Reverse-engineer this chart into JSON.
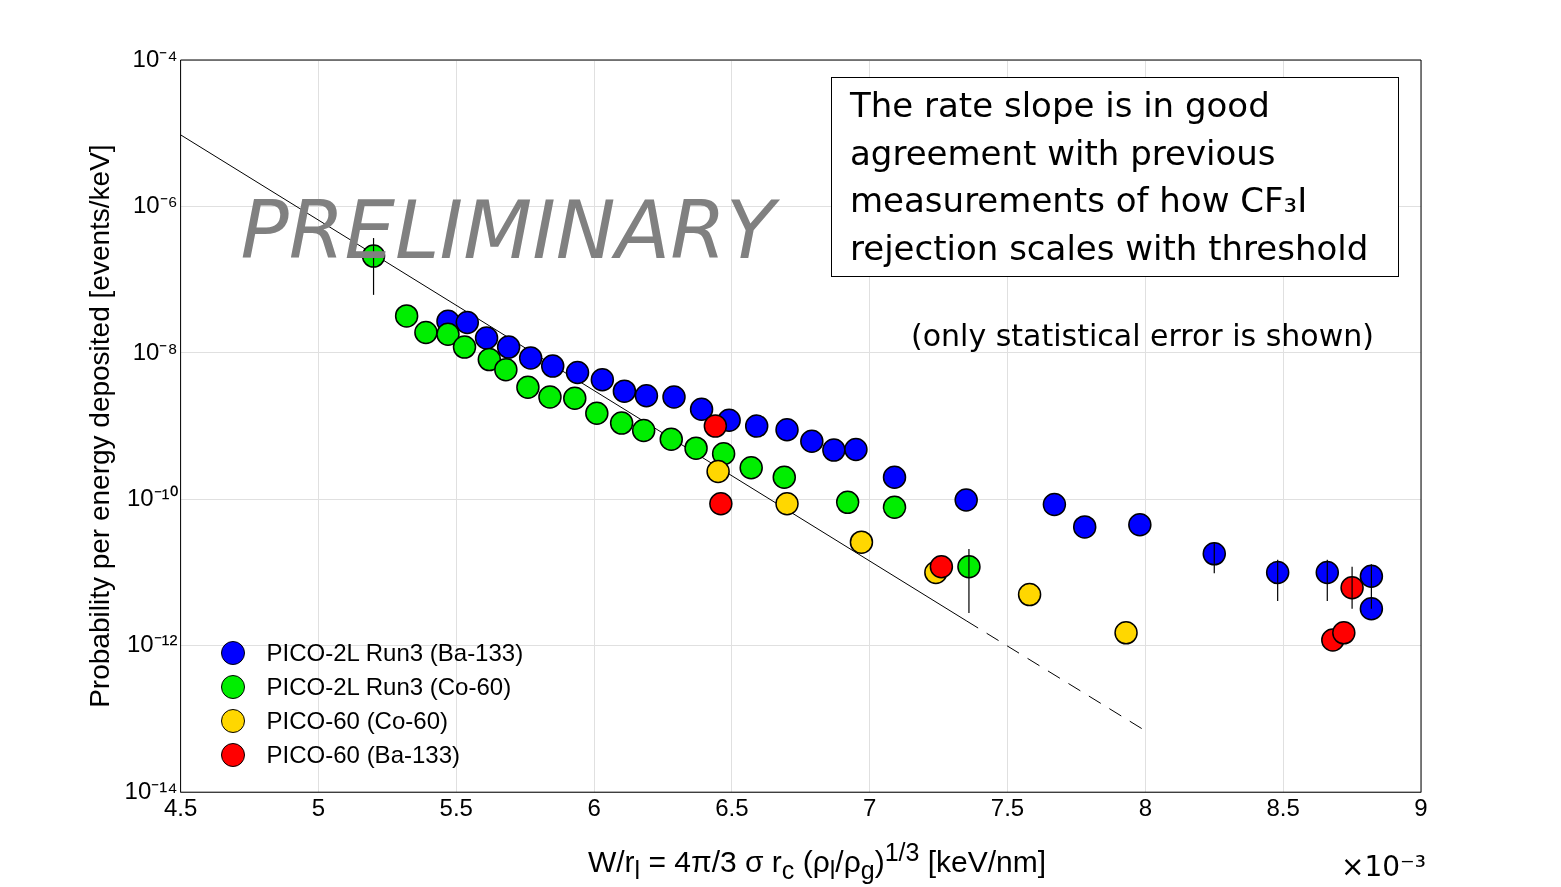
{
  "chart_data": {
    "type": "scatter",
    "xlabel": "W/r$_{l}$ = 4π/3 σ r$_{c}$ (ρ$_{l}$/ρ$_{g}$)$^{1/3}$ [keV/nm]",
    "ylabel": "Probability per energy deposited [events/keV]",
    "annotations": [
      "The rate slope is in good agreement with previous measurements of how CF₃I rejection scales with threshold",
      "(only statistical error is shown)",
      "PRELIMINARY",
      "×10⁻³"
    ],
    "log": "y",
    "grid": true,
    "legend": "bottom left",
    "marker": "circle",
    "xlim": [
      4.5,
      9
    ],
    "xticks": [
      4.5,
      5,
      5.5,
      6,
      6.5,
      7,
      7.5,
      8,
      8.5,
      9
    ],
    "ylim": [
      1e-14,
      0.0001
    ],
    "yticks": [
      {
        "value": 1e-14,
        "label": "10⁻¹⁴"
      },
      {
        "value": 1e-12,
        "label": "10⁻¹²"
      },
      {
        "value": 1e-10,
        "label": "10⁻¹⁰"
      },
      {
        "value": 1e-08,
        "label": "10⁻⁸"
      },
      {
        "value": 1e-06,
        "label": "10⁻⁶"
      },
      {
        "value": 0.0001,
        "label": "10⁻⁴"
      }
    ],
    "series": [
      {
        "type": "line",
        "color": "#000000",
        "line_style": "solid",
        "marker": "none",
        "x": [
          4.5,
          7.35
        ],
        "values": [
          9.5e-06,
          2.2e-12
        ]
      },
      {
        "type": "line",
        "color": "#000000",
        "line_style": "dashed",
        "marker": "none",
        "x": [
          7.35,
          8.0
        ],
        "values": [
          2.2e-12,
          6.9e-14
        ]
      },
      {
        "name": "PICO-2L Run3 (Ba-133)",
        "color": "#0000ff",
        "x": [
          5.47,
          5.54,
          5.61,
          5.69,
          5.77,
          5.85,
          5.94,
          6.03,
          6.11,
          6.19,
          6.29,
          6.39,
          6.49,
          6.59,
          6.7,
          6.79,
          6.87,
          6.95,
          7.09,
          7.35,
          7.67,
          7.78,
          7.98,
          8.25,
          8.48,
          8.66,
          8.82,
          8.82
        ],
        "values": [
          2.7e-08,
          2.6e-08,
          1.6e-08,
          1.2e-08,
          8.5e-09,
          6.6e-09,
          5.4e-09,
          4.3e-09,
          3e-09,
          2.6e-09,
          2.5e-09,
          1.7e-09,
          1.2e-09,
          1e-09,
          8.9e-10,
          6.2e-10,
          4.7e-10,
          4.8e-10,
          2e-10,
          9.8e-11,
          8.5e-11,
          4.2e-11,
          4.5e-11,
          1.8e-11,
          1e-11,
          1e-11,
          8.9e-12,
          3.2e-12
        ],
        "errors": [
          null,
          null,
          null,
          null,
          null,
          null,
          null,
          null,
          null,
          null,
          null,
          null,
          null,
          null,
          null,
          null,
          null,
          null,
          null,
          null,
          null,
          null,
          null,
          [
            9.8e-12,
            2.6e-11
          ],
          [
            4.1e-12,
            1.5e-11
          ],
          [
            4.1e-12,
            1.5e-11
          ],
          [
            3.2e-12,
            1.3e-11
          ],
          null
        ]
      },
      {
        "name": "PICO-2L Run3 (Co-60)",
        "color": "#00ee00",
        "x": [
          5.2,
          5.32,
          5.39,
          5.47,
          5.53,
          5.62,
          5.68,
          5.76,
          5.84,
          5.93,
          6.01,
          6.1,
          6.18,
          6.28,
          6.37,
          6.47,
          6.57,
          6.69,
          6.92,
          7.09,
          7.36
        ],
        "values": [
          2.1e-07,
          3.2e-08,
          1.9e-08,
          1.8e-08,
          1.2e-08,
          8.1e-09,
          5.9e-09,
          3.4e-09,
          2.5e-09,
          2.4e-09,
          1.5e-09,
          1.1e-09,
          8.7e-10,
          6.6e-10,
          5e-10,
          4.2e-10,
          2.7e-10,
          2e-10,
          9.1e-11,
          7.8e-11,
          1.2e-11
        ],
        "errors": [
          [
            6.2e-08,
            3.7e-07
          ],
          null,
          null,
          null,
          null,
          null,
          null,
          null,
          null,
          null,
          null,
          null,
          null,
          null,
          null,
          null,
          null,
          null,
          null,
          null,
          [
            2.8e-12,
            2.1e-11
          ]
        ]
      },
      {
        "name": "PICO-60 (Co-60)",
        "color": "#ffd700",
        "x": [
          6.45,
          6.7,
          6.97,
          7.24,
          7.58,
          7.93
        ],
        "values": [
          2.4e-10,
          8.7e-11,
          2.6e-11,
          1e-11,
          5e-12,
          1.5e-12
        ]
      },
      {
        "name": "PICO-60 (Ba-133)",
        "color": "#ff0000",
        "x": [
          6.44,
          6.46,
          7.26,
          8.68,
          8.72,
          8.75
        ],
        "values": [
          1e-09,
          8.7e-11,
          1.2e-11,
          1.2e-12,
          1.5e-12,
          6.2e-12
        ],
        "errors": [
          null,
          null,
          null,
          null,
          null,
          [
            3.2e-12,
            1.2e-11
          ]
        ]
      }
    ]
  }
}
